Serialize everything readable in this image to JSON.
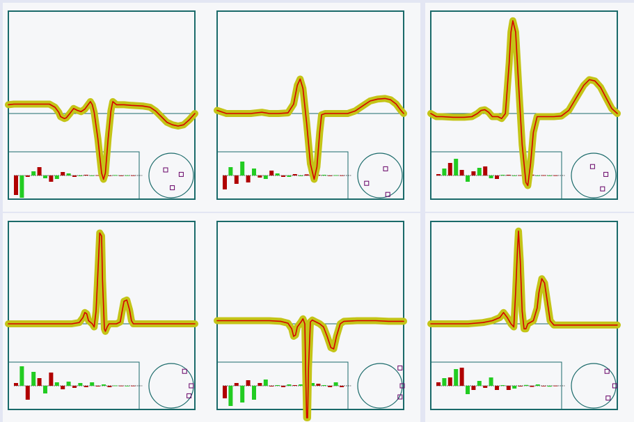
{
  "colors": {
    "frame": "#1a6a6a",
    "trace": "#d40000",
    "trace_halo": "#c4c417",
    "bar_positive": "#22cc22",
    "bar_negative": "#b00000",
    "marker": "#660066",
    "cell_background": "#f6f7f9",
    "page_background": "#e3e6f3"
  },
  "chart_data": [
    {
      "type": "line",
      "panel": "top-left",
      "series": [
        {
          "values": [
            [
              0,
              0.14
            ],
            [
              0.03,
              0.15
            ],
            [
              0.08,
              0.15
            ],
            [
              0.12,
              0.15
            ],
            [
              0.18,
              0.15
            ],
            [
              0.22,
              0.15
            ],
            [
              0.25,
              0.1
            ],
            [
              0.27,
              0.02
            ],
            [
              0.28,
              -0.05
            ],
            [
              0.3,
              -0.08
            ],
            [
              0.31,
              -0.07
            ],
            [
              0.33,
              0.0
            ],
            [
              0.35,
              0.08
            ],
            [
              0.37,
              0.05
            ],
            [
              0.39,
              0.03
            ],
            [
              0.41,
              0.07
            ],
            [
              0.43,
              0.15
            ],
            [
              0.44,
              0.19
            ],
            [
              0.45,
              0.14
            ],
            [
              0.46,
              0.02
            ],
            [
              0.48,
              -0.4
            ],
            [
              0.5,
              -0.95
            ],
            [
              0.51,
              -1.05
            ],
            [
              0.52,
              -0.95
            ],
            [
              0.535,
              -0.4
            ],
            [
              0.55,
              0.04
            ],
            [
              0.56,
              0.19
            ],
            [
              0.58,
              0.14
            ],
            [
              0.62,
              0.14
            ],
            [
              0.66,
              0.13
            ],
            [
              0.72,
              0.12
            ],
            [
              0.76,
              0.1
            ],
            [
              0.79,
              0.04
            ],
            [
              0.82,
              -0.05
            ],
            [
              0.85,
              -0.14
            ],
            [
              0.88,
              -0.18
            ],
            [
              0.91,
              -0.2
            ],
            [
              0.94,
              -0.18
            ],
            [
              0.97,
              -0.1
            ],
            [
              1.0,
              0.0
            ]
          ]
        }
      ],
      "coefficients": [
        -1.4,
        -1.6,
        -0.1,
        0.3,
        0.6,
        -0.2,
        -0.45,
        -0.25,
        0.25,
        0.15,
        -0.1,
        -0.05,
        0.05,
        -0.03,
        0.02,
        0.02,
        -0.03,
        0.03,
        -0.02,
        0.01,
        0.01
      ],
      "markers": [
        [
          -0.25,
          0.25
        ],
        [
          0.45,
          0.05
        ],
        [
          0.05,
          -0.55
        ]
      ]
    },
    {
      "type": "line",
      "panel": "top-center",
      "series": [
        {
          "values": [
            [
              0,
              0.05
            ],
            [
              0.05,
              0.0
            ],
            [
              0.12,
              0.0
            ],
            [
              0.18,
              0.0
            ],
            [
              0.24,
              0.02
            ],
            [
              0.28,
              0.0
            ],
            [
              0.33,
              0.0
            ],
            [
              0.38,
              0.01
            ],
            [
              0.41,
              0.15
            ],
            [
              0.43,
              0.45
            ],
            [
              0.445,
              0.55
            ],
            [
              0.46,
              0.4
            ],
            [
              0.48,
              -0.15
            ],
            [
              0.5,
              -0.8
            ],
            [
              0.52,
              -1.05
            ],
            [
              0.535,
              -0.85
            ],
            [
              0.55,
              -0.3
            ],
            [
              0.56,
              -0.02
            ],
            [
              0.58,
              0.0
            ],
            [
              0.64,
              0.0
            ],
            [
              0.7,
              0.0
            ],
            [
              0.74,
              0.04
            ],
            [
              0.78,
              0.12
            ],
            [
              0.82,
              0.2
            ],
            [
              0.86,
              0.23
            ],
            [
              0.9,
              0.24
            ],
            [
              0.93,
              0.22
            ],
            [
              0.96,
              0.15
            ],
            [
              0.98,
              0.07
            ],
            [
              1.0,
              0.0
            ]
          ]
        }
      ],
      "coefficients": [
        -1.0,
        0.6,
        -0.6,
        1.0,
        -0.5,
        0.5,
        -0.15,
        -0.25,
        0.35,
        0.15,
        -0.1,
        -0.1,
        0.1,
        -0.05,
        0.08,
        -0.05,
        0.05,
        0.05,
        -0.03,
        0.02,
        0.01
      ],
      "markers": [
        [
          0.35,
          -0.85
        ],
        [
          -0.6,
          -0.35
        ],
        [
          0.25,
          0.3
        ]
      ]
    },
    {
      "type": "line",
      "panel": "top-right",
      "series": [
        {
          "values": [
            [
              0,
              0.0
            ],
            [
              0.03,
              -0.05
            ],
            [
              0.06,
              -0.05
            ],
            [
              0.12,
              -0.06
            ],
            [
              0.18,
              -0.06
            ],
            [
              0.22,
              -0.05
            ],
            [
              0.25,
              0.0
            ],
            [
              0.27,
              0.05
            ],
            [
              0.29,
              0.06
            ],
            [
              0.31,
              0.02
            ],
            [
              0.33,
              -0.05
            ],
            [
              0.36,
              -0.05
            ],
            [
              0.38,
              -0.08
            ],
            [
              0.4,
              0.0
            ],
            [
              0.42,
              0.8
            ],
            [
              0.43,
              1.3
            ],
            [
              0.44,
              1.48
            ],
            [
              0.455,
              1.3
            ],
            [
              0.47,
              0.5
            ],
            [
              0.49,
              -0.5
            ],
            [
              0.51,
              -1.1
            ],
            [
              0.52,
              -1.15
            ],
            [
              0.535,
              -0.8
            ],
            [
              0.55,
              -0.3
            ],
            [
              0.57,
              -0.05
            ],
            [
              0.6,
              -0.05
            ],
            [
              0.66,
              -0.05
            ],
            [
              0.7,
              -0.04
            ],
            [
              0.74,
              0.05
            ],
            [
              0.78,
              0.25
            ],
            [
              0.82,
              0.45
            ],
            [
              0.85,
              0.54
            ],
            [
              0.88,
              0.52
            ],
            [
              0.91,
              0.42
            ],
            [
              0.94,
              0.25
            ],
            [
              0.97,
              0.08
            ],
            [
              1.0,
              0.0
            ]
          ]
        }
      ],
      "coefficients": [
        0.1,
        0.5,
        0.9,
        1.2,
        0.4,
        -0.45,
        0.3,
        0.55,
        0.65,
        -0.2,
        -0.25,
        0.05,
        0.05,
        -0.02,
        0.02,
        0.05,
        0.06,
        -0.04,
        0.02,
        -0.02,
        0.01
      ],
      "markers": [
        [
          -0.05,
          0.4
        ],
        [
          0.55,
          0.05
        ],
        [
          0.4,
          -0.6
        ]
      ]
    },
    {
      "type": "line",
      "panel": "bottom-left",
      "series": [
        {
          "values": [
            [
              0,
              0.0
            ],
            [
              0.05,
              0.0
            ],
            [
              0.12,
              0.0
            ],
            [
              0.2,
              0.0
            ],
            [
              0.28,
              0.0
            ],
            [
              0.34,
              0.0
            ],
            [
              0.38,
              0.02
            ],
            [
              0.4,
              0.1
            ],
            [
              0.41,
              0.18
            ],
            [
              0.42,
              0.16
            ],
            [
              0.43,
              0.05
            ],
            [
              0.45,
              0.0
            ],
            [
              0.46,
              -0.05
            ],
            [
              0.47,
              0.2
            ],
            [
              0.48,
              0.8
            ],
            [
              0.49,
              1.45
            ],
            [
              0.5,
              1.4
            ],
            [
              0.505,
              0.7
            ],
            [
              0.515,
              -0.08
            ],
            [
              0.52,
              -0.12
            ],
            [
              0.53,
              -0.05
            ],
            [
              0.54,
              0.0
            ],
            [
              0.56,
              0.0
            ],
            [
              0.58,
              0.0
            ],
            [
              0.6,
              0.03
            ],
            [
              0.61,
              0.2
            ],
            [
              0.62,
              0.36
            ],
            [
              0.635,
              0.38
            ],
            [
              0.65,
              0.22
            ],
            [
              0.66,
              0.05
            ],
            [
              0.67,
              0.0
            ],
            [
              0.75,
              0.0
            ],
            [
              0.85,
              0.0
            ],
            [
              0.92,
              0.0
            ],
            [
              1.0,
              0.0
            ]
          ]
        }
      ],
      "coefficients": [
        0.2,
        1.4,
        -1.0,
        1.0,
        0.55,
        -0.55,
        0.95,
        0.25,
        -0.25,
        0.3,
        -0.15,
        0.2,
        -0.1,
        0.25,
        -0.05,
        0.1,
        -0.1,
        0.02,
        0.01,
        -0.01,
        0.01
      ],
      "markers": [
        [
          0.6,
          0.65
        ],
        [
          0.9,
          0.0
        ],
        [
          0.8,
          -0.45
        ]
      ]
    },
    {
      "type": "line",
      "panel": "bottom-center",
      "series": [
        {
          "values": [
            [
              0,
              0.05
            ],
            [
              0.05,
              0.05
            ],
            [
              0.12,
              0.05
            ],
            [
              0.2,
              0.05
            ],
            [
              0.28,
              0.05
            ],
            [
              0.34,
              0.04
            ],
            [
              0.38,
              0.01
            ],
            [
              0.4,
              -0.08
            ],
            [
              0.41,
              -0.2
            ],
            [
              0.42,
              -0.18
            ],
            [
              0.43,
              -0.05
            ],
            [
              0.45,
              0.03
            ],
            [
              0.46,
              0.08
            ],
            [
              0.47,
              0.0
            ],
            [
              0.475,
              -0.8
            ],
            [
              0.48,
              -1.5
            ],
            [
              0.485,
              -1.5
            ],
            [
              0.49,
              -0.7
            ],
            [
              0.5,
              0.03
            ],
            [
              0.51,
              0.06
            ],
            [
              0.53,
              0.03
            ],
            [
              0.55,
              0.0
            ],
            [
              0.57,
              -0.05
            ],
            [
              0.59,
              -0.2
            ],
            [
              0.61,
              -0.38
            ],
            [
              0.625,
              -0.4
            ],
            [
              0.64,
              -0.2
            ],
            [
              0.66,
              0.0
            ],
            [
              0.68,
              0.04
            ],
            [
              0.75,
              0.05
            ],
            [
              0.85,
              0.05
            ],
            [
              0.92,
              0.04
            ],
            [
              1.0,
              0.04
            ]
          ]
        }
      ],
      "coefficients": [
        -0.9,
        -1.45,
        0.2,
        -1.2,
        0.4,
        -1.0,
        0.2,
        0.45,
        -0.05,
        0.05,
        -0.1,
        0.1,
        0.05,
        0.1,
        -0.1,
        0.2,
        0.15,
        0.05,
        -0.1,
        0.25,
        -0.1
      ],
      "markers": [
        [
          0.9,
          0.8
        ],
        [
          1.0,
          0.0
        ],
        [
          0.9,
          -0.5
        ]
      ]
    },
    {
      "type": "line",
      "panel": "bottom-right",
      "series": [
        {
          "values": [
            [
              0,
              0.0
            ],
            [
              0.05,
              0.0
            ],
            [
              0.12,
              0.0
            ],
            [
              0.2,
              0.0
            ],
            [
              0.28,
              0.02
            ],
            [
              0.33,
              0.05
            ],
            [
              0.37,
              0.1
            ],
            [
              0.39,
              0.18
            ],
            [
              0.41,
              0.1
            ],
            [
              0.43,
              0.0
            ],
            [
              0.445,
              -0.05
            ],
            [
              0.455,
              0.5
            ],
            [
              0.465,
              1.2
            ],
            [
              0.47,
              1.48
            ],
            [
              0.48,
              1.0
            ],
            [
              0.49,
              0.2
            ],
            [
              0.5,
              -0.08
            ],
            [
              0.51,
              -0.08
            ],
            [
              0.52,
              0.0
            ],
            [
              0.55,
              0.05
            ],
            [
              0.57,
              0.25
            ],
            [
              0.58,
              0.5
            ],
            [
              0.595,
              0.72
            ],
            [
              0.61,
              0.65
            ],
            [
              0.625,
              0.35
            ],
            [
              0.64,
              0.05
            ],
            [
              0.66,
              -0.02
            ],
            [
              0.7,
              -0.02
            ],
            [
              0.8,
              -0.02
            ],
            [
              0.9,
              -0.02
            ],
            [
              1.0,
              -0.02
            ]
          ]
        }
      ],
      "coefficients": [
        0.25,
        0.55,
        0.6,
        1.2,
        1.3,
        -0.6,
        -0.3,
        0.35,
        -0.15,
        0.6,
        -0.3,
        0.05,
        -0.3,
        -0.2,
        -0.05,
        0.06,
        -0.08,
        0.1,
        -0.02,
        -0.06,
        0.01
      ],
      "markers": [
        [
          0.6,
          0.65
        ],
        [
          0.95,
          0.0
        ],
        [
          0.65,
          -0.55
        ]
      ]
    }
  ]
}
